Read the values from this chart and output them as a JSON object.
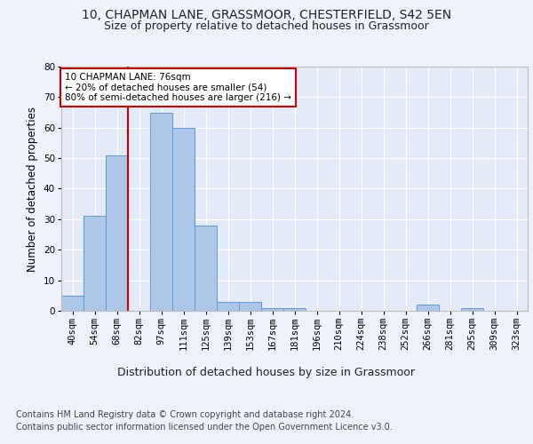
{
  "title1": "10, CHAPMAN LANE, GRASSMOOR, CHESTERFIELD, S42 5EN",
  "title2": "Size of property relative to detached houses in Grassmoor",
  "xlabel": "Distribution of detached houses by size in Grassmoor",
  "ylabel": "Number of detached properties",
  "footer1": "Contains HM Land Registry data © Crown copyright and database right 2024.",
  "footer2": "Contains public sector information licensed under the Open Government Licence v3.0.",
  "categories": [
    "40sqm",
    "54sqm",
    "68sqm",
    "82sqm",
    "97sqm",
    "111sqm",
    "125sqm",
    "139sqm",
    "153sqm",
    "167sqm",
    "181sqm",
    "196sqm",
    "210sqm",
    "224sqm",
    "238sqm",
    "252sqm",
    "266sqm",
    "281sqm",
    "295sqm",
    "309sqm",
    "323sqm"
  ],
  "values": [
    5,
    31,
    51,
    0,
    65,
    60,
    28,
    3,
    3,
    1,
    1,
    0,
    0,
    0,
    0,
    0,
    2,
    0,
    1,
    0,
    0
  ],
  "bar_color": "#aec6e8",
  "bar_edge_color": "#5b9bd5",
  "vline_index": 2,
  "vline_color": "#cc0000",
  "annotation_text": "10 CHAPMAN LANE: 76sqm\n← 20% of detached houses are smaller (54)\n80% of semi-detached houses are larger (216) →",
  "annotation_box_color": "#cc0000",
  "ylim": [
    0,
    80
  ],
  "yticks": [
    0,
    10,
    20,
    30,
    40,
    50,
    60,
    70,
    80
  ],
  "background_color": "#eef1fb",
  "plot_background": "#e4eaf7",
  "grid_color": "#ffffff",
  "title1_fontsize": 10,
  "title2_fontsize": 9,
  "xlabel_fontsize": 9,
  "ylabel_fontsize": 8.5,
  "tick_fontsize": 7.5,
  "annotation_fontsize": 7.5,
  "footer_fontsize": 7
}
